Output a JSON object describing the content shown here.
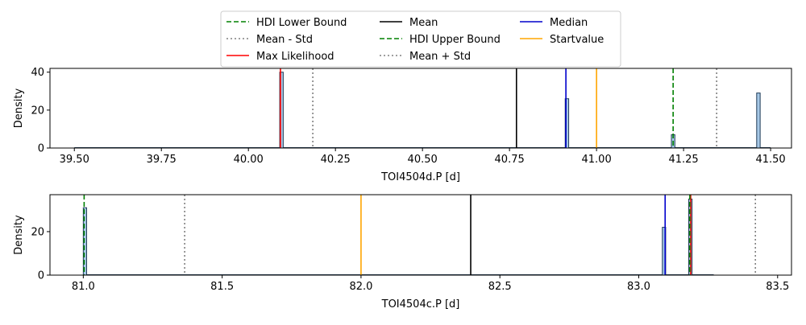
{
  "chart_data": {
    "type": "histogram",
    "legend": {
      "placement": "top-center",
      "entries": [
        {
          "label": "HDI Lower Bound",
          "color": "#008000",
          "style": "dashed"
        },
        {
          "label": "Mean - Std",
          "color": "#808080",
          "style": "dotted"
        },
        {
          "label": "Max Likelihood",
          "color": "#ff0000",
          "style": "solid"
        },
        {
          "label": "Mean",
          "color": "#000000",
          "style": "solid"
        },
        {
          "label": "HDI Upper Bound",
          "color": "#008000",
          "style": "dashed"
        },
        {
          "label": "Mean + Std",
          "color": "#808080",
          "style": "dotted"
        },
        {
          "label": "Median",
          "color": "#0000cc",
          "style": "solid"
        },
        {
          "label": "Startvalue",
          "color": "#ffa500",
          "style": "solid"
        }
      ]
    },
    "panels": [
      {
        "xlabel": "TOI4504d.P [d]",
        "ylabel": "Density",
        "xlim": [
          39.43,
          41.56
        ],
        "ylim": [
          0,
          42
        ],
        "xticks": [
          "39.50",
          "39.75",
          "40.00",
          "40.25",
          "40.50",
          "40.75",
          "41.00",
          "41.25",
          "41.50"
        ],
        "yticks": [
          "0",
          "20",
          "40"
        ],
        "bars": [
          {
            "x0": 40.09,
            "x1": 40.1,
            "height": 40
          },
          {
            "x0": 40.91,
            "x1": 40.92,
            "height": 26
          },
          {
            "x0": 41.215,
            "x1": 41.225,
            "height": 7
          },
          {
            "x0": 41.46,
            "x1": 41.47,
            "height": 29
          }
        ],
        "baseline": [
          39.5,
          41.5
        ],
        "lines": [
          {
            "type": "Max Likelihood",
            "x": 40.092
          },
          {
            "type": "Mean - Std",
            "x": 40.185
          },
          {
            "type": "Mean",
            "x": 40.77
          },
          {
            "type": "Median",
            "x": 40.912
          },
          {
            "type": "Startvalue",
            "x": 41.0
          },
          {
            "type": "HDI Upper Bound",
            "x": 41.22
          },
          {
            "type": "Mean + Std",
            "x": 41.345
          }
        ]
      },
      {
        "xlabel": "TOI4504c.P [d]",
        "ylabel": "Density",
        "xlim": [
          80.88,
          83.55
        ],
        "ylim": [
          0,
          37
        ],
        "xticks": [
          "81.0",
          "81.5",
          "82.0",
          "82.5",
          "83.0",
          "83.5"
        ],
        "yticks": [
          "0",
          "20"
        ],
        "bars": [
          {
            "x0": 81.0,
            "x1": 81.012,
            "height": 31
          },
          {
            "x0": 83.085,
            "x1": 83.097,
            "height": 22
          },
          {
            "x0": 83.18,
            "x1": 83.192,
            "height": 35
          }
        ],
        "baseline": [
          81.0,
          83.27
        ],
        "lines": [
          {
            "type": "HDI Lower Bound",
            "x": 81.003
          },
          {
            "type": "Mean - Std",
            "x": 81.365
          },
          {
            "type": "Startvalue",
            "x": 82.0
          },
          {
            "type": "Mean",
            "x": 82.395
          },
          {
            "type": "Median",
            "x": 83.095
          },
          {
            "type": "Max Likelihood",
            "x": 83.187
          },
          {
            "type": "HDI Upper Bound",
            "x": 83.184
          },
          {
            "type": "Mean + Std",
            "x": 83.42
          }
        ]
      }
    ]
  }
}
